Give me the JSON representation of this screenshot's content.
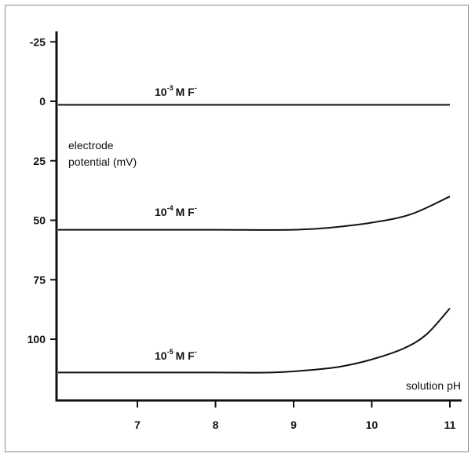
{
  "chart_data": {
    "type": "line",
    "title": "",
    "xlabel": "solution pH",
    "ylabel_lines": [
      "electrode",
      "potential (mV)"
    ],
    "xlim": [
      6,
      11.1
    ],
    "ylim": [
      -25,
      124
    ],
    "y_inverted": true,
    "grid": false,
    "x_ticks": [
      7,
      8,
      9,
      10,
      11
    ],
    "x_tick_labels": [
      "7",
      "8",
      "9",
      "10",
      "11"
    ],
    "y_ticks": [
      -25,
      0,
      25,
      50,
      75,
      100
    ],
    "y_tick_labels": [
      "-25",
      "0",
      "25",
      "50",
      "75",
      "100"
    ],
    "series": [
      {
        "label_base": "10",
        "label_exp": "-3",
        "label_unit": "M F",
        "label_charge": "-",
        "x": [
          6,
          7,
          8,
          9,
          10,
          11
        ],
        "y": [
          1.5,
          1.5,
          1.5,
          1.5,
          1.5,
          1.5
        ]
      },
      {
        "label_base": "10",
        "label_exp": "-4",
        "label_unit": "M F",
        "label_charge": "-",
        "x": [
          6,
          7,
          8,
          9,
          9.5,
          10,
          10.5,
          11
        ],
        "y": [
          54,
          54,
          54,
          54,
          53,
          51,
          47.5,
          40
        ]
      },
      {
        "label_base": "10",
        "label_exp": "-5",
        "label_unit": "M F",
        "label_charge": "-",
        "x": [
          6,
          7,
          8,
          8.7,
          9.2,
          9.6,
          10,
          10.4,
          10.7,
          11
        ],
        "y": [
          114,
          114,
          114,
          114,
          113,
          111.5,
          108.5,
          104,
          98,
          87
        ]
      }
    ]
  }
}
